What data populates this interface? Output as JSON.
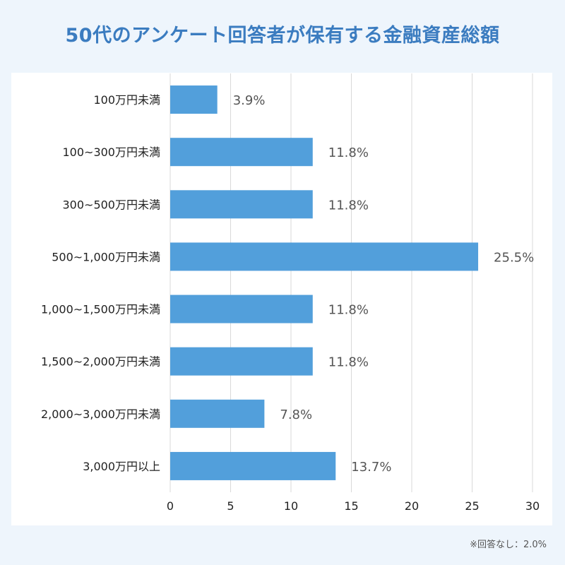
{
  "title": "50代のアンケート回答者が保有する金融資産総額",
  "note": "※回答なし：2.0%",
  "colors": {
    "background": "#eef5fc",
    "bar": "#529fdb",
    "title": "#3b7cc0",
    "grid": "#d9d9d9",
    "label": "#222222",
    "value_label": "#555555"
  },
  "chart_data": {
    "type": "bar",
    "orientation": "horizontal",
    "title": "50代のアンケート回答者が保有する金融資産総額",
    "categories": [
      "100万円未満",
      "100~300万円未満",
      "300~500万円未満",
      "500~1,000万円未満",
      "1,000~1,500万円未満",
      "1,500~2,000万円未満",
      "2,000~3,000万円未満",
      "3,000万円以上"
    ],
    "values": [
      3.9,
      11.8,
      11.8,
      25.5,
      11.8,
      11.8,
      7.8,
      13.7
    ],
    "value_labels": [
      "3.9%",
      "11.8%",
      "11.8%",
      "25.5%",
      "11.8%",
      "11.8%",
      "7.8%",
      "13.7%"
    ],
    "xlim": [
      0,
      30
    ],
    "xticks": [
      "0",
      "5",
      "10",
      "15",
      "20",
      "25",
      "30"
    ],
    "xlabel": "",
    "ylabel": "",
    "grid": "vertical"
  }
}
